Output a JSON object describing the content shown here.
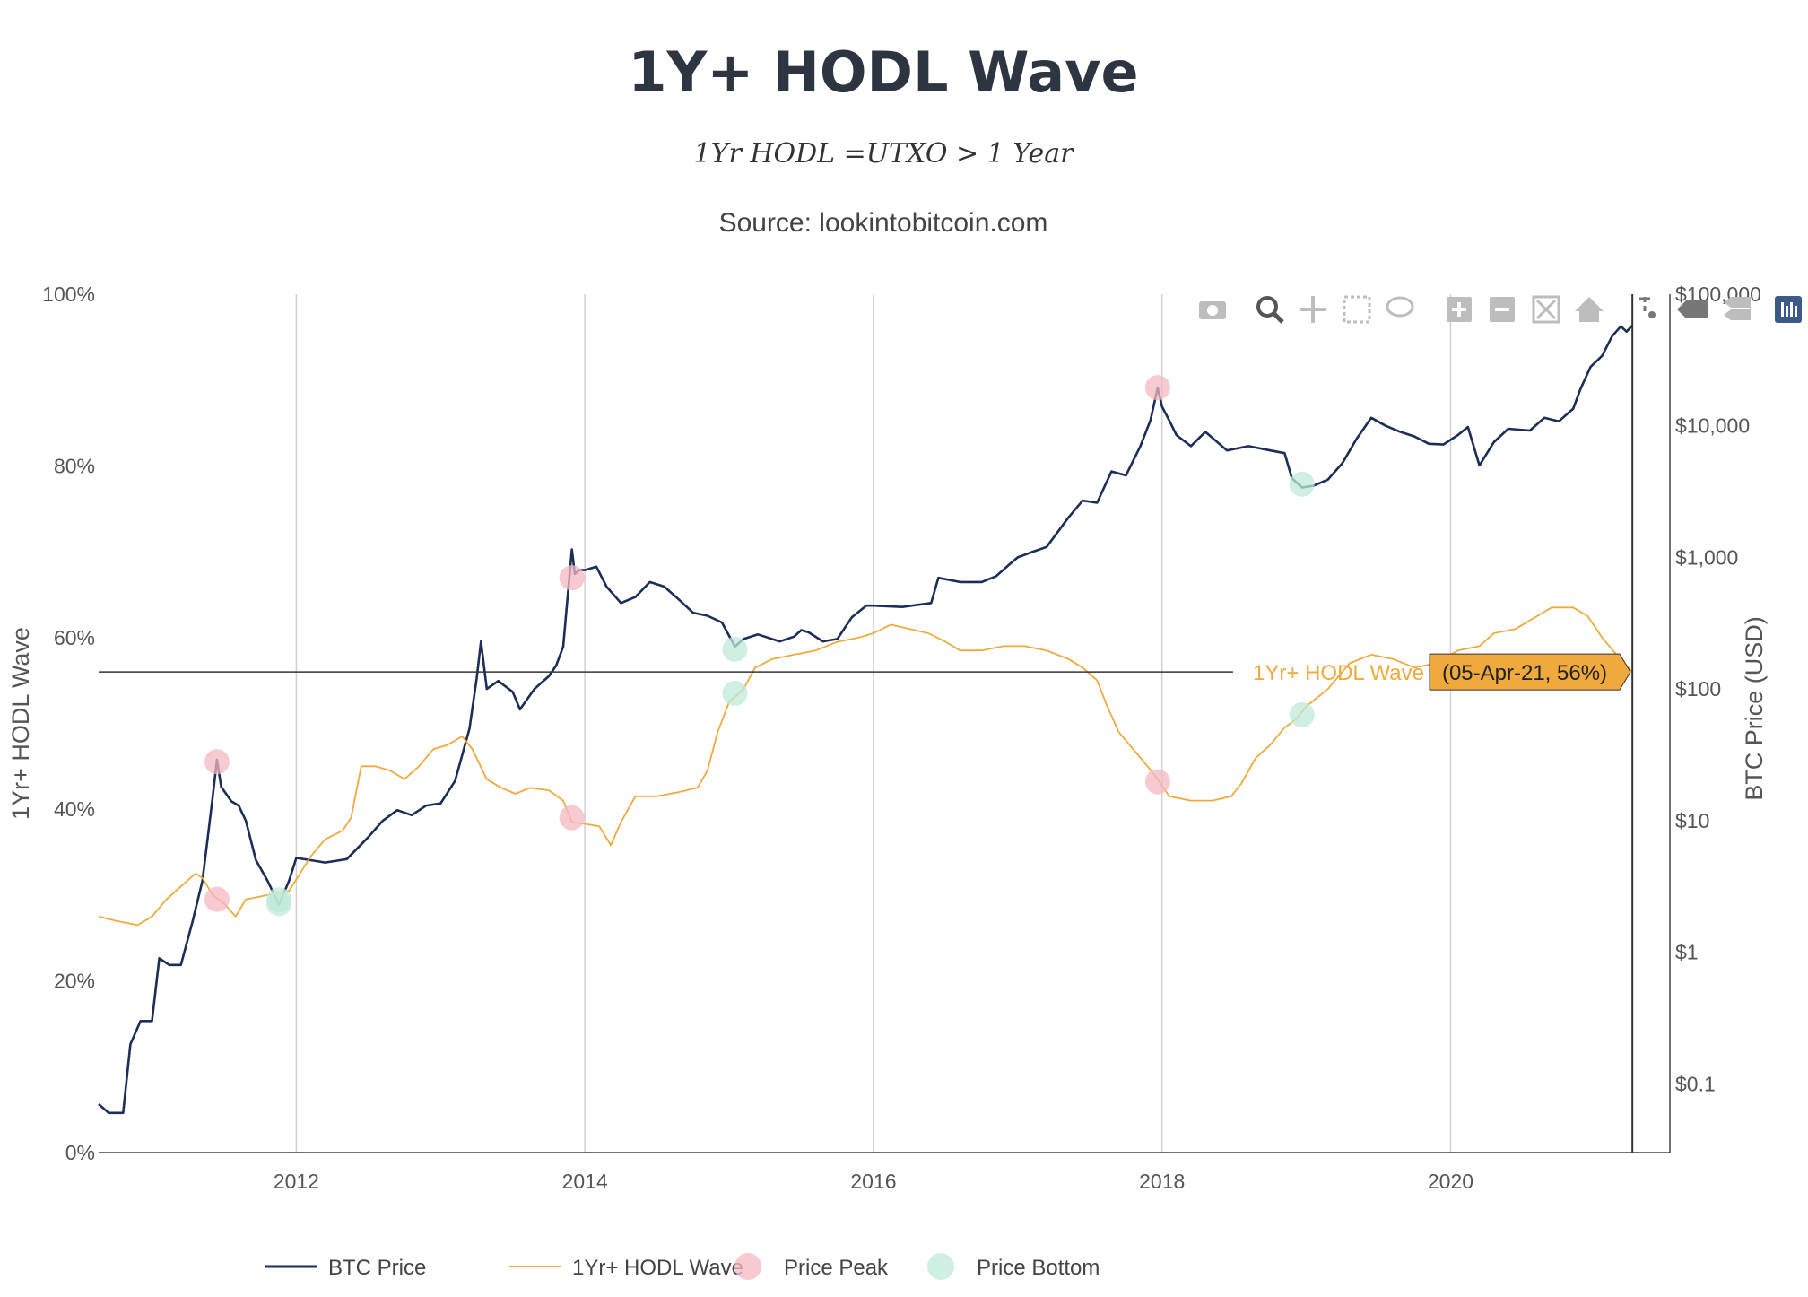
{
  "title": "1Y+ HODL Wave",
  "formula": "1Yr HODL =UTXO > 1 Year",
  "source": "Source: lookintobitcoin.com",
  "modebar": [
    "camera-icon",
    "zoom-icon",
    "pan-icon",
    "box-select-icon",
    "lasso-icon",
    "zoom-in-icon",
    "zoom-out-icon",
    "autoscale-icon",
    "reset-axes-icon",
    "spike-lines-icon",
    "hover-closest-icon",
    "hover-compare-icon",
    "plotly-logo-icon"
  ],
  "hover": {
    "series_label": "1Yr+ HODL Wave",
    "value_label": "(05-Apr-21, 56%)"
  },
  "chart_data": {
    "type": "line",
    "x_ticks": [
      "2012",
      "2014",
      "2016",
      "2018",
      "2020"
    ],
    "y_left": {
      "title": "1Yr+ HODL Wave",
      "ticks": [
        "0%",
        "20%",
        "40%",
        "60%",
        "80%",
        "100%"
      ],
      "range": [
        0,
        100
      ]
    },
    "y_right": {
      "title": "BTC Price (USD)",
      "scale": "log",
      "ticks": [
        "$0.1",
        "$1",
        "$10",
        "$100",
        "$1,000",
        "$10,000",
        "$100,000"
      ],
      "range": [
        0.03,
        100000
      ]
    },
    "x_range": [
      2010.63,
      2021.52
    ],
    "series": [
      {
        "name": "BTC Price",
        "color": "#1a2e57",
        "axis": "right",
        "points": [
          [
            2010.63,
            0.07
          ],
          [
            2010.7,
            0.06
          ],
          [
            2010.8,
            0.06
          ],
          [
            2010.85,
            0.2
          ],
          [
            2010.92,
            0.3
          ],
          [
            2011.0,
            0.3
          ],
          [
            2011.05,
            0.9
          ],
          [
            2011.12,
            0.8
          ],
          [
            2011.2,
            0.8
          ],
          [
            2011.28,
            1.7
          ],
          [
            2011.35,
            3.5
          ],
          [
            2011.42,
            15
          ],
          [
            2011.45,
            29
          ],
          [
            2011.48,
            18
          ],
          [
            2011.55,
            14
          ],
          [
            2011.6,
            13
          ],
          [
            2011.65,
            10
          ],
          [
            2011.72,
            5
          ],
          [
            2011.8,
            3.5
          ],
          [
            2011.88,
            2.3
          ],
          [
            2011.95,
            3.5
          ],
          [
            2012.0,
            5.2
          ],
          [
            2012.1,
            5
          ],
          [
            2012.2,
            4.8
          ],
          [
            2012.35,
            5.1
          ],
          [
            2012.5,
            7.5
          ],
          [
            2012.6,
            10
          ],
          [
            2012.7,
            12
          ],
          [
            2012.8,
            11
          ],
          [
            2012.9,
            13
          ],
          [
            2013.0,
            13.5
          ],
          [
            2013.1,
            20
          ],
          [
            2013.2,
            50
          ],
          [
            2013.25,
            120
          ],
          [
            2013.28,
            230
          ],
          [
            2013.32,
            100
          ],
          [
            2013.4,
            115
          ],
          [
            2013.5,
            95
          ],
          [
            2013.55,
            70
          ],
          [
            2013.65,
            100
          ],
          [
            2013.75,
            125
          ],
          [
            2013.8,
            150
          ],
          [
            2013.85,
            210
          ],
          [
            2013.88,
            500
          ],
          [
            2013.91,
            1150
          ],
          [
            2013.93,
            750
          ],
          [
            2013.96,
            800
          ],
          [
            2014.0,
            800
          ],
          [
            2014.08,
            850
          ],
          [
            2014.15,
            600
          ],
          [
            2014.25,
            450
          ],
          [
            2014.35,
            500
          ],
          [
            2014.45,
            650
          ],
          [
            2014.55,
            600
          ],
          [
            2014.65,
            480
          ],
          [
            2014.75,
            380
          ],
          [
            2014.85,
            360
          ],
          [
            2014.95,
            320
          ],
          [
            2015.04,
            210
          ],
          [
            2015.1,
            240
          ],
          [
            2015.2,
            260
          ],
          [
            2015.35,
            230
          ],
          [
            2015.45,
            250
          ],
          [
            2015.5,
            280
          ],
          [
            2015.55,
            270
          ],
          [
            2015.65,
            230
          ],
          [
            2015.75,
            240
          ],
          [
            2015.85,
            350
          ],
          [
            2015.95,
            430
          ],
          [
            2016.0,
            430
          ],
          [
            2016.2,
            420
          ],
          [
            2016.4,
            450
          ],
          [
            2016.45,
            700
          ],
          [
            2016.6,
            650
          ],
          [
            2016.75,
            650
          ],
          [
            2016.85,
            720
          ],
          [
            2016.95,
            900
          ],
          [
            2017.0,
            1000
          ],
          [
            2017.1,
            1100
          ],
          [
            2017.2,
            1200
          ],
          [
            2017.35,
            2000
          ],
          [
            2017.45,
            2700
          ],
          [
            2017.55,
            2600
          ],
          [
            2017.65,
            4500
          ],
          [
            2017.75,
            4200
          ],
          [
            2017.85,
            7000
          ],
          [
            2017.92,
            11000
          ],
          [
            2017.97,
            19500
          ],
          [
            2018.0,
            14000
          ],
          [
            2018.05,
            11000
          ],
          [
            2018.1,
            8500
          ],
          [
            2018.2,
            7000
          ],
          [
            2018.3,
            9000
          ],
          [
            2018.45,
            6500
          ],
          [
            2018.6,
            7000
          ],
          [
            2018.75,
            6500
          ],
          [
            2018.85,
            6200
          ],
          [
            2018.9,
            4000
          ],
          [
            2018.97,
            3400
          ],
          [
            2019.05,
            3500
          ],
          [
            2019.15,
            3900
          ],
          [
            2019.25,
            5200
          ],
          [
            2019.35,
            8000
          ],
          [
            2019.45,
            11500
          ],
          [
            2019.55,
            10000
          ],
          [
            2019.65,
            9000
          ],
          [
            2019.75,
            8300
          ],
          [
            2019.85,
            7300
          ],
          [
            2019.95,
            7200
          ],
          [
            2020.05,
            8500
          ],
          [
            2020.12,
            9800
          ],
          [
            2020.2,
            5000
          ],
          [
            2020.3,
            7500
          ],
          [
            2020.4,
            9500
          ],
          [
            2020.55,
            9200
          ],
          [
            2020.65,
            11500
          ],
          [
            2020.75,
            10800
          ],
          [
            2020.85,
            13500
          ],
          [
            2020.9,
            19000
          ],
          [
            2020.97,
            28000
          ],
          [
            2021.05,
            34000
          ],
          [
            2021.12,
            48000
          ],
          [
            2021.18,
            57000
          ],
          [
            2021.22,
            52000
          ],
          [
            2021.26,
            58000
          ]
        ]
      },
      {
        "name": "1Yr+ HODL Wave",
        "color": "#f0a93c",
        "axis": "left",
        "points": [
          [
            2010.63,
            27.5
          ],
          [
            2010.75,
            27
          ],
          [
            2010.9,
            26.5
          ],
          [
            2011.0,
            27.5
          ],
          [
            2011.1,
            29.5
          ],
          [
            2011.2,
            31
          ],
          [
            2011.3,
            32.5
          ],
          [
            2011.35,
            32
          ],
          [
            2011.42,
            30
          ],
          [
            2011.5,
            29
          ],
          [
            2011.58,
            27.5
          ],
          [
            2011.65,
            29.5
          ],
          [
            2011.8,
            30
          ],
          [
            2011.95,
            30.5
          ],
          [
            2012.1,
            34.5
          ],
          [
            2012.2,
            36.5
          ],
          [
            2012.32,
            37.5
          ],
          [
            2012.38,
            39
          ],
          [
            2012.45,
            45
          ],
          [
            2012.55,
            45
          ],
          [
            2012.65,
            44.5
          ],
          [
            2012.75,
            43.5
          ],
          [
            2012.85,
            45
          ],
          [
            2012.95,
            47
          ],
          [
            2013.05,
            47.5
          ],
          [
            2013.15,
            48.5
          ],
          [
            2013.22,
            47
          ],
          [
            2013.32,
            43.5
          ],
          [
            2013.42,
            42.5
          ],
          [
            2013.52,
            41.8
          ],
          [
            2013.62,
            42.5
          ],
          [
            2013.75,
            42.2
          ],
          [
            2013.85,
            41
          ],
          [
            2013.91,
            38.5
          ],
          [
            2014.0,
            38.3
          ],
          [
            2014.1,
            38
          ],
          [
            2014.18,
            35.8
          ],
          [
            2014.25,
            38.5
          ],
          [
            2014.35,
            41.5
          ],
          [
            2014.5,
            41.5
          ],
          [
            2014.65,
            42
          ],
          [
            2014.78,
            42.5
          ],
          [
            2014.85,
            44.5
          ],
          [
            2014.92,
            49
          ],
          [
            2015.0,
            52.5
          ],
          [
            2015.1,
            54
          ],
          [
            2015.18,
            56.5
          ],
          [
            2015.3,
            57.5
          ],
          [
            2015.45,
            58
          ],
          [
            2015.6,
            58.5
          ],
          [
            2015.75,
            59.5
          ],
          [
            2015.9,
            60
          ],
          [
            2016.0,
            60.5
          ],
          [
            2016.12,
            61.5
          ],
          [
            2016.25,
            61
          ],
          [
            2016.38,
            60.5
          ],
          [
            2016.5,
            59.5
          ],
          [
            2016.6,
            58.5
          ],
          [
            2016.75,
            58.5
          ],
          [
            2016.9,
            59
          ],
          [
            2017.05,
            59
          ],
          [
            2017.2,
            58.5
          ],
          [
            2017.35,
            57.5
          ],
          [
            2017.45,
            56.5
          ],
          [
            2017.55,
            55
          ],
          [
            2017.62,
            52
          ],
          [
            2017.7,
            49
          ],
          [
            2017.8,
            47
          ],
          [
            2017.9,
            45
          ],
          [
            2017.97,
            43.5
          ],
          [
            2018.05,
            41.5
          ],
          [
            2018.2,
            41
          ],
          [
            2018.35,
            41
          ],
          [
            2018.48,
            41.5
          ],
          [
            2018.55,
            43
          ],
          [
            2018.65,
            46
          ],
          [
            2018.75,
            47.5
          ],
          [
            2018.85,
            49.5
          ],
          [
            2018.93,
            50.5
          ],
          [
            2019.0,
            52
          ],
          [
            2019.15,
            54
          ],
          [
            2019.3,
            57
          ],
          [
            2019.45,
            58
          ],
          [
            2019.6,
            57.5
          ],
          [
            2019.75,
            56.5
          ],
          [
            2019.9,
            57
          ],
          [
            2020.05,
            58.5
          ],
          [
            2020.2,
            59
          ],
          [
            2020.3,
            60.5
          ],
          [
            2020.45,
            61
          ],
          [
            2020.6,
            62.5
          ],
          [
            2020.7,
            63.5
          ],
          [
            2020.85,
            63.5
          ],
          [
            2020.95,
            62.5
          ],
          [
            2021.05,
            60
          ],
          [
            2021.15,
            58
          ],
          [
            2021.26,
            56
          ]
        ]
      }
    ],
    "markers": [
      {
        "name": "Price Peak",
        "color": "#f4b8c1",
        "points": [
          [
            2011.45,
            28
          ],
          [
            2013.91,
            700
          ],
          [
            2017.97,
            19500
          ],
          [
            2011.45,
            29.5
          ],
          [
            2013.91,
            39
          ],
          [
            2017.97,
            43.2
          ]
        ],
        "axes": [
          "right",
          "right",
          "right",
          "left",
          "left",
          "left"
        ]
      },
      {
        "name": "Price Bottom",
        "color": "#bfe9d8",
        "points": [
          [
            2011.88,
            2.5
          ],
          [
            2015.04,
            200
          ],
          [
            2018.97,
            3600
          ],
          [
            2011.88,
            29
          ],
          [
            2015.04,
            53.5
          ],
          [
            2018.97,
            51
          ]
        ],
        "axes": [
          "right",
          "right",
          "right",
          "left",
          "left",
          "left"
        ]
      }
    ],
    "crosshair": {
      "x": 2021.26,
      "y": 56
    },
    "legend": [
      {
        "label": "BTC Price",
        "kind": "line",
        "color": "#1a2e57"
      },
      {
        "label": "1Yr+ HODL Wave",
        "kind": "line",
        "color": "#f0a93c"
      },
      {
        "label": "Price Peak",
        "kind": "marker",
        "color": "#f4b8c1"
      },
      {
        "label": "Price Bottom",
        "kind": "marker",
        "color": "#bfe9d8"
      }
    ]
  }
}
